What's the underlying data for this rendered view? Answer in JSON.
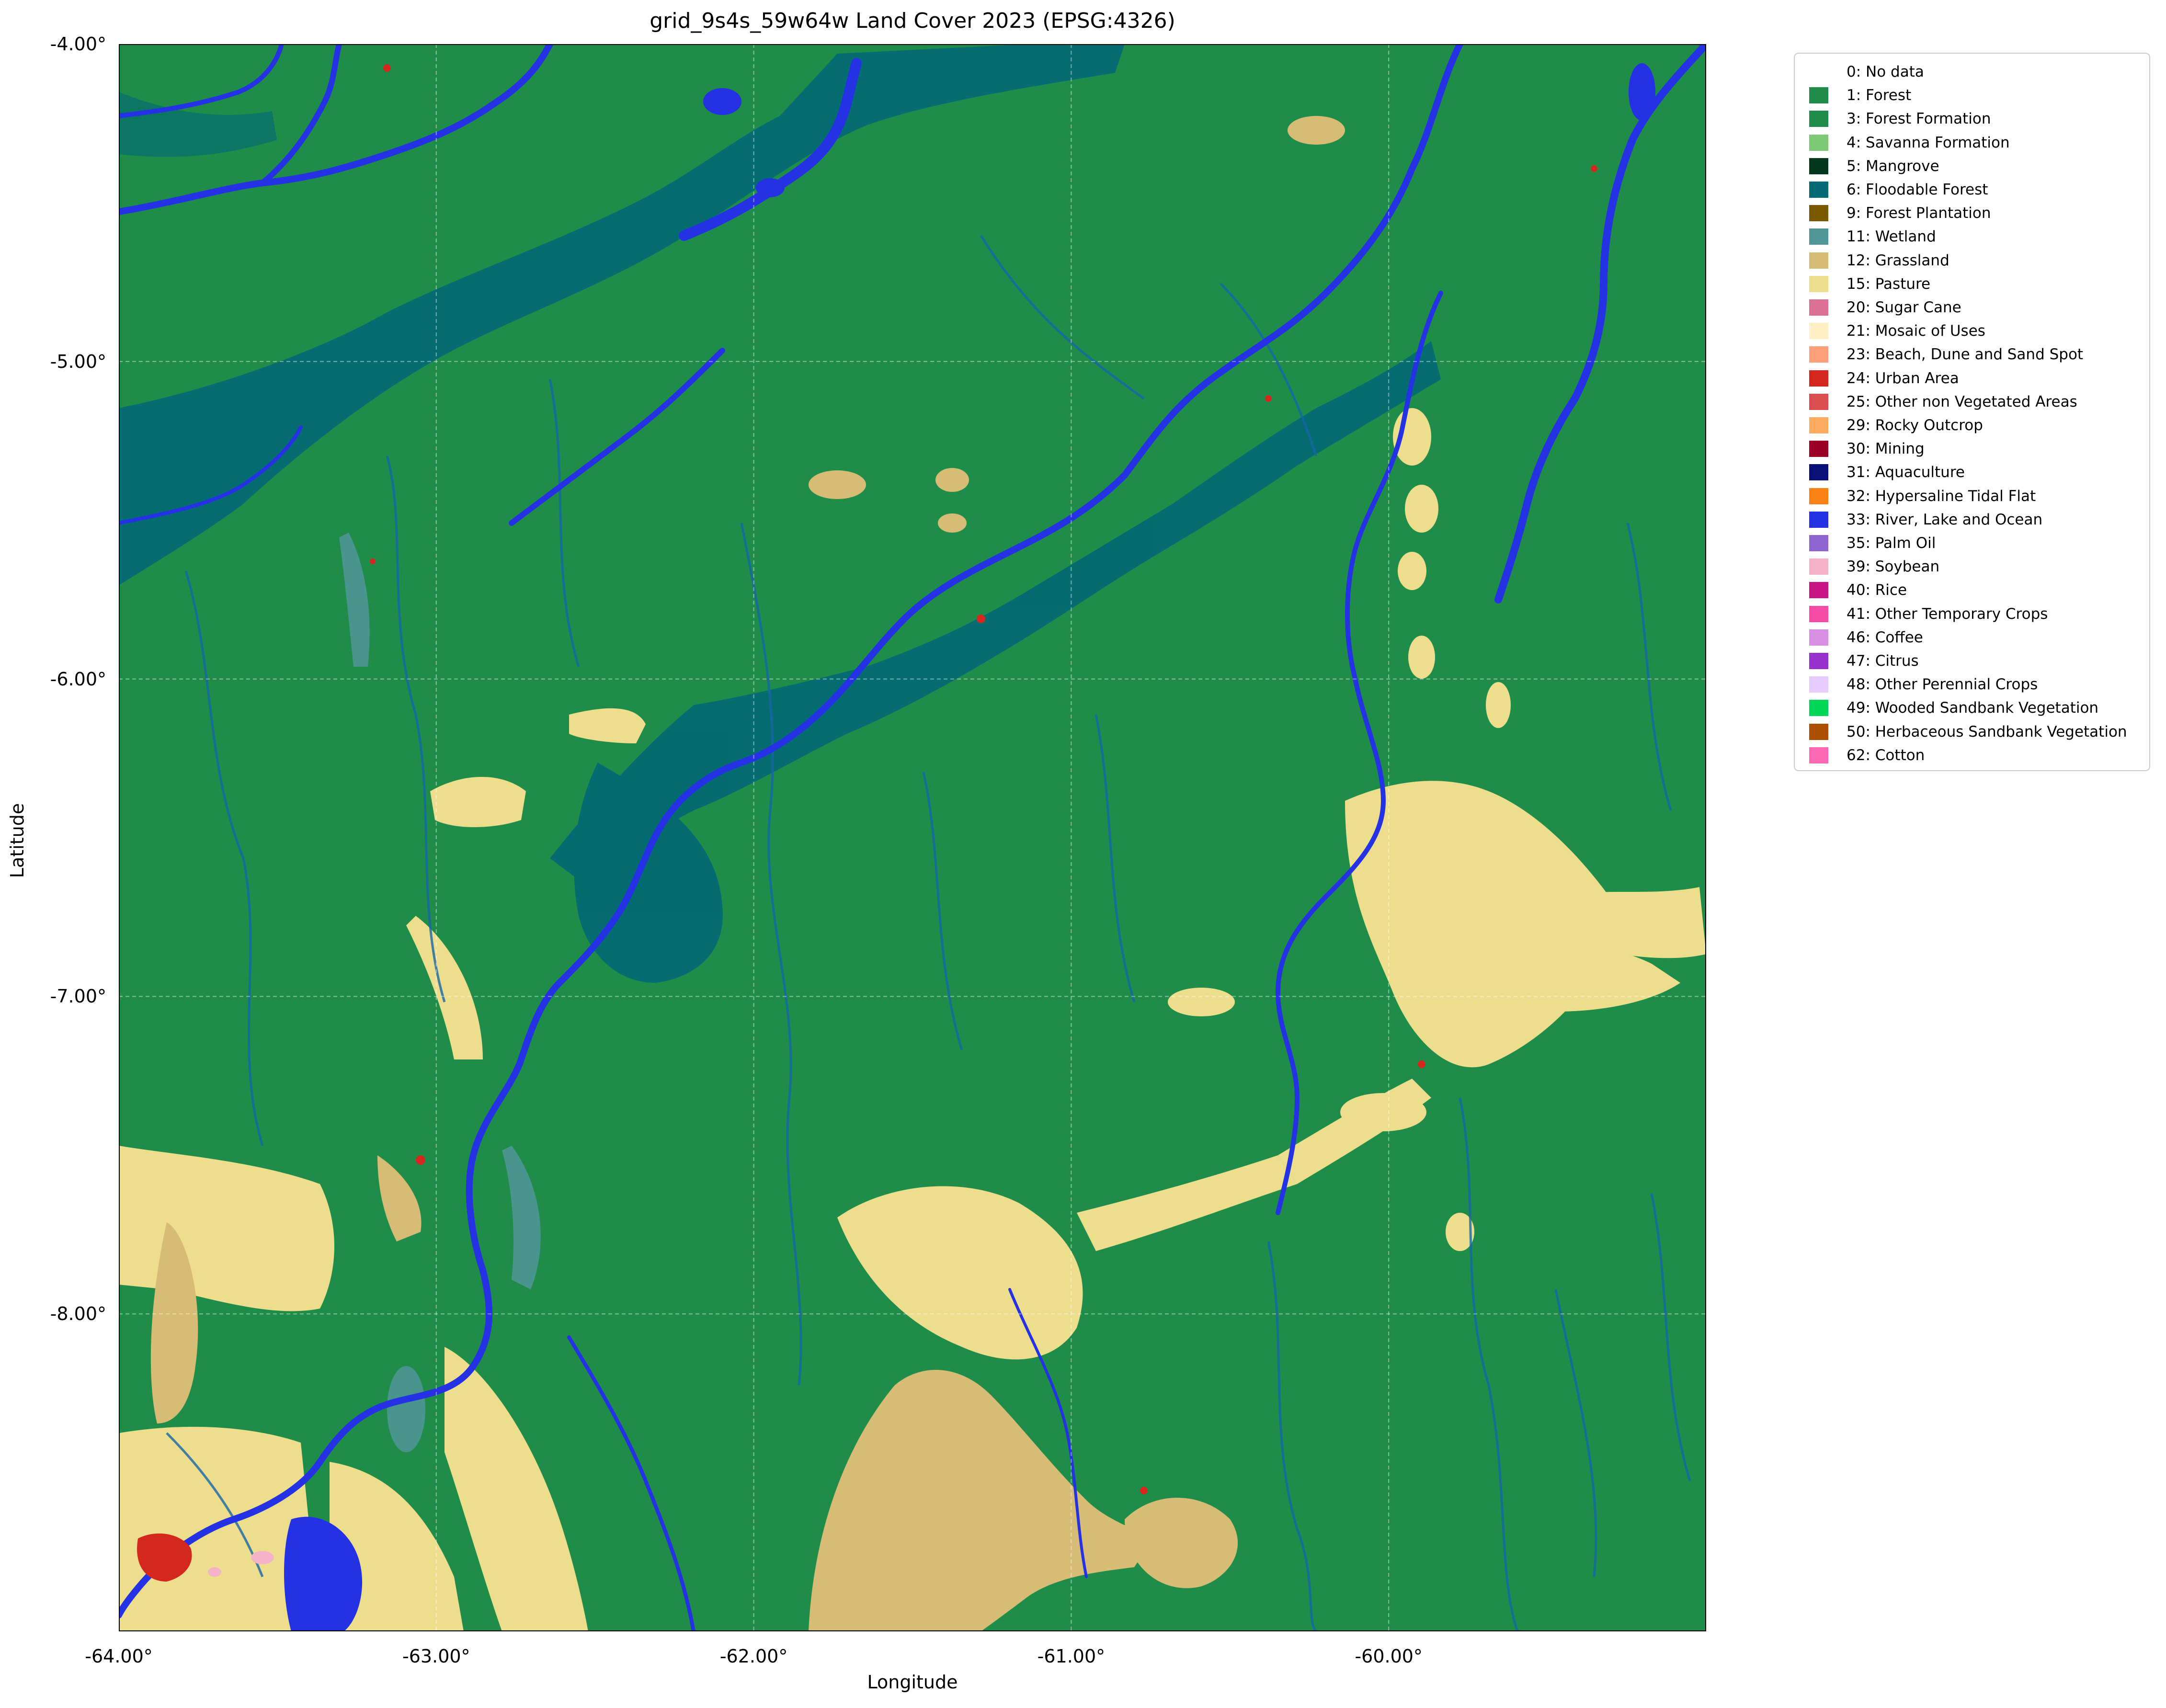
{
  "title": "grid_9s4s_59w64w Land Cover 2023 (EPSG:4326)",
  "xlabel": "Longitude",
  "ylabel": "Latitude",
  "x_ticks": [
    {
      "value": -64.0,
      "label": "-64.00°"
    },
    {
      "value": -63.0,
      "label": "-63.00°"
    },
    {
      "value": -62.0,
      "label": "-62.00°"
    },
    {
      "value": -61.0,
      "label": "-61.00°"
    },
    {
      "value": -60.0,
      "label": "-60.00°"
    }
  ],
  "y_ticks": [
    {
      "value": -4.0,
      "label": "-4.00°"
    },
    {
      "value": -5.0,
      "label": "-5.00°"
    },
    {
      "value": -6.0,
      "label": "-6.00°"
    },
    {
      "value": -7.0,
      "label": "-7.00°"
    },
    {
      "value": -8.0,
      "label": "-8.00°"
    }
  ],
  "extent": {
    "lon": [
      -64.0,
      -59.0
    ],
    "lat": [
      -9.0,
      -4.0
    ]
  },
  "grid": true,
  "legend_position": "outside-top-right",
  "legend": [
    {
      "label": "0: No data",
      "color": "#ffffff"
    },
    {
      "label": "1: Forest",
      "color": "#1f8d49"
    },
    {
      "label": "3: Forest Formation",
      "color": "#1f8d49"
    },
    {
      "label": "4: Savanna Formation",
      "color": "#7dc975"
    },
    {
      "label": "5: Mangrove",
      "color": "#04381d"
    },
    {
      "label": "6: Floodable Forest",
      "color": "#026975"
    },
    {
      "label": "9: Forest Plantation",
      "color": "#7a5900"
    },
    {
      "label": "11: Wetland",
      "color": "#519799"
    },
    {
      "label": "12: Grassland",
      "color": "#d6bc74"
    },
    {
      "label": "15: Pasture",
      "color": "#edde8e"
    },
    {
      "label": "20: Sugar Cane",
      "color": "#db7093"
    },
    {
      "label": "21: Mosaic of Uses",
      "color": "#ffefc3"
    },
    {
      "label": "23: Beach, Dune and Sand Spot",
      "color": "#ffa07a"
    },
    {
      "label": "24: Urban Area",
      "color": "#d4271e"
    },
    {
      "label": "25: Other non Vegetated Areas",
      "color": "#db4d4f"
    },
    {
      "label": "29: Rocky Outcrop",
      "color": "#ffaa5f"
    },
    {
      "label": "30: Mining",
      "color": "#9c0027"
    },
    {
      "label": "31: Aquaculture",
      "color": "#091077"
    },
    {
      "label": "32: Hypersaline Tidal Flat",
      "color": "#fc8114"
    },
    {
      "label": "33: River, Lake and Ocean",
      "color": "#2532e4"
    },
    {
      "label": "35: Palm Oil",
      "color": "#9065d0"
    },
    {
      "label": "39: Soybean",
      "color": "#f5b3c8"
    },
    {
      "label": "40: Rice",
      "color": "#c71585"
    },
    {
      "label": "41: Other Temporary Crops",
      "color": "#f54ca9"
    },
    {
      "label": "46: Coffee",
      "color": "#d68fe2"
    },
    {
      "label": "47: Citrus",
      "color": "#9932cc"
    },
    {
      "label": "48: Other Perennial Crops",
      "color": "#e6ccff"
    },
    {
      "label": "49: Wooded Sandbank Vegetation",
      "color": "#02d659"
    },
    {
      "label": "50: Herbaceous Sandbank Vegetation",
      "color": "#ad5100"
    },
    {
      "label": "62: Cotton",
      "color": "#ff69b4"
    }
  ],
  "palette": {
    "forest": "#1f8d49",
    "floodable": "#026975",
    "river": "#2532e4",
    "pasture": "#edde8e",
    "grassland": "#d6bc74",
    "wetland": "#519799",
    "urban": "#d4271e",
    "stream": "#1565a8"
  }
}
